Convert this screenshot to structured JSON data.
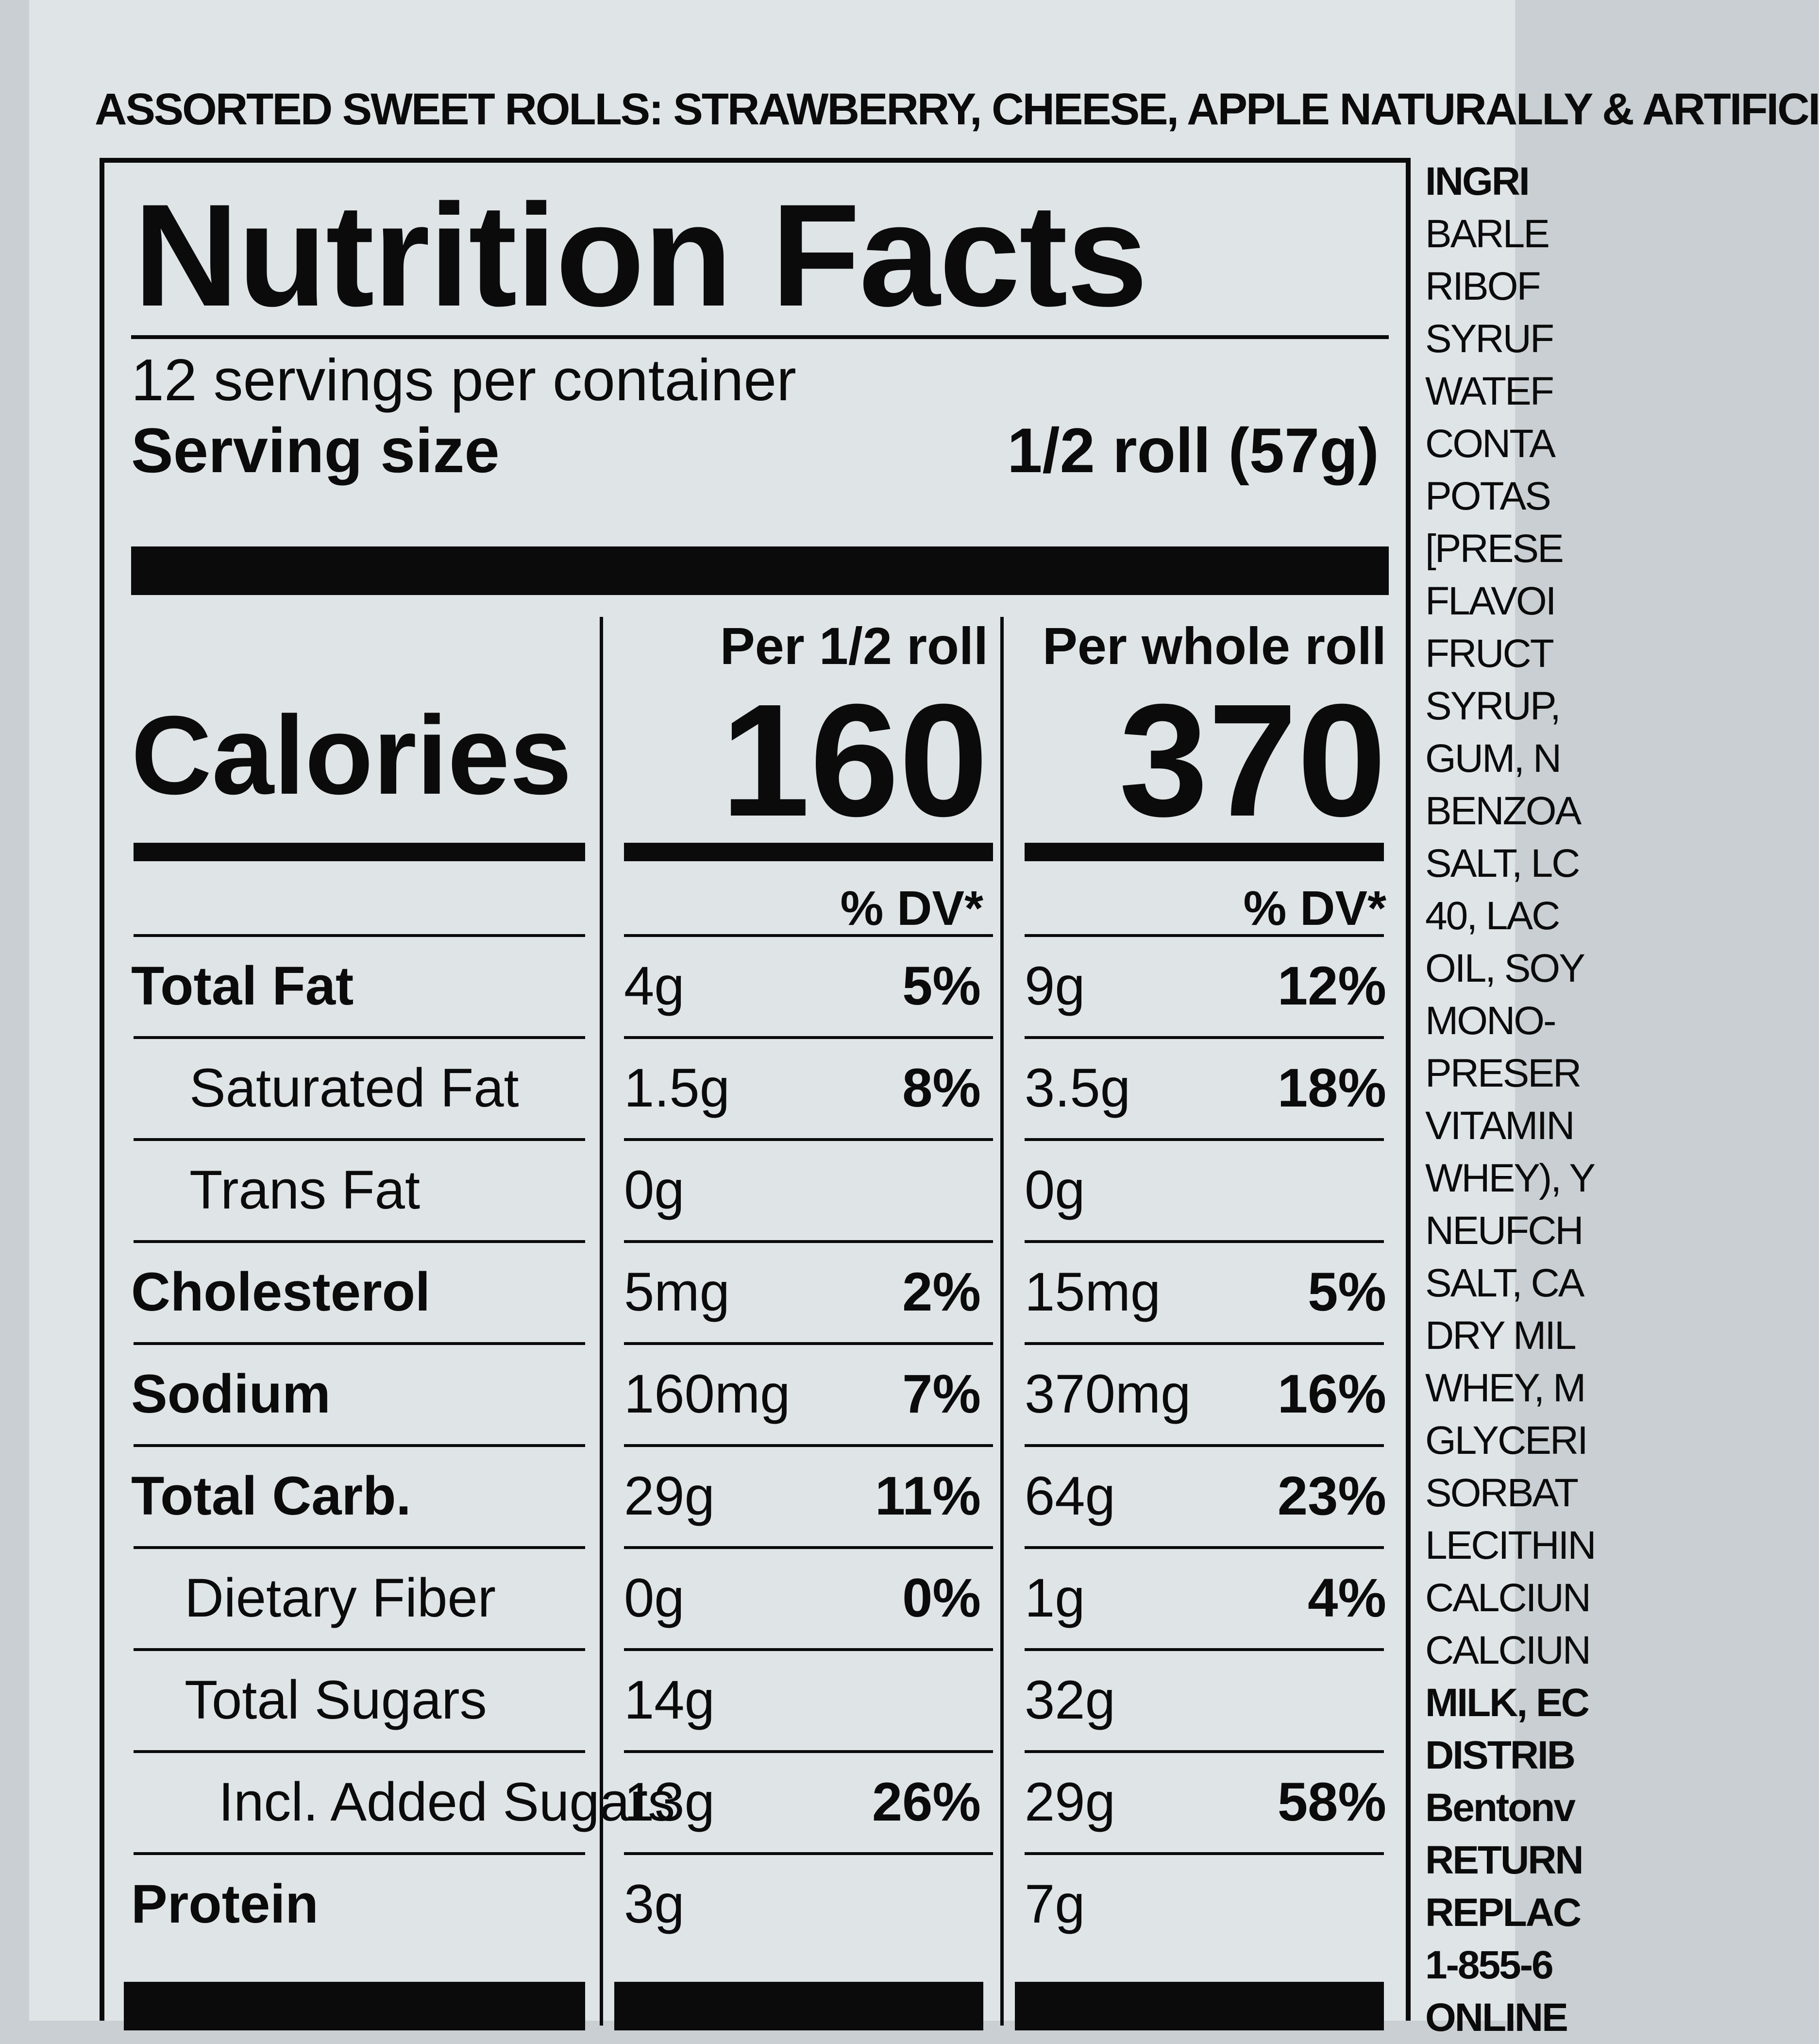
{
  "product_line": "ASSORTED SWEET ROLLS: STRAWBERRY, CHEESE, APPLE NATURALLY & ARTIFICI",
  "label": {
    "title": "Nutrition Facts",
    "servings_per_container": "12 servings per container",
    "serving_size_label": "Serving size",
    "serving_size_value": "1/2 roll (57g)",
    "columns": [
      "Per 1/2 roll",
      "Per whole roll"
    ],
    "calories_label": "Calories",
    "calories": [
      "160",
      "370"
    ],
    "dv_header": "% DV*",
    "rows": [
      {
        "name": "Total Fat",
        "bold": true,
        "half": {
          "amount": "4g",
          "dv": "5%"
        },
        "whole": {
          "amount": "9g",
          "dv": "12%"
        }
      },
      {
        "name": "Saturated Fat",
        "bold": false,
        "half": {
          "amount": "1.5g",
          "dv": "8%"
        },
        "whole": {
          "amount": "3.5g",
          "dv": "18%"
        }
      },
      {
        "name": "Trans Fat",
        "bold": false,
        "half": {
          "amount": "0g",
          "dv": ""
        },
        "whole": {
          "amount": "0g",
          "dv": ""
        }
      },
      {
        "name": "Cholesterol",
        "bold": true,
        "half": {
          "amount": "5mg",
          "dv": "2%"
        },
        "whole": {
          "amount": "15mg",
          "dv": "5%"
        }
      },
      {
        "name": "Sodium",
        "bold": true,
        "half": {
          "amount": "160mg",
          "dv": "7%"
        },
        "whole": {
          "amount": "370mg",
          "dv": "16%"
        }
      },
      {
        "name": "Total Carb.",
        "bold": true,
        "half": {
          "amount": "29g",
          "dv": "11%"
        },
        "whole": {
          "amount": "64g",
          "dv": "23%"
        }
      },
      {
        "name": "Dietary Fiber",
        "bold": false,
        "half": {
          "amount": "0g",
          "dv": "0%"
        },
        "whole": {
          "amount": "1g",
          "dv": "4%"
        }
      },
      {
        "name": "Total Sugars",
        "bold": false,
        "half": {
          "amount": "14g",
          "dv": ""
        },
        "whole": {
          "amount": "32g",
          "dv": ""
        }
      },
      {
        "name": "Incl. Added Sugars",
        "bold": false,
        "half": {
          "amount": "13g",
          "dv": "26%"
        },
        "whole": {
          "amount": "29g",
          "dv": "58%"
        }
      },
      {
        "name": "Protein",
        "bold": true,
        "half": {
          "amount": "3g",
          "dv": ""
        },
        "whole": {
          "amount": "7g",
          "dv": ""
        }
      }
    ]
  },
  "ingredients_fragments": [
    {
      "text": "INGRI",
      "bold": true
    },
    {
      "text": "BARLE",
      "bold": false
    },
    {
      "text": "RIBOF",
      "bold": false
    },
    {
      "text": "SYRUF",
      "bold": false
    },
    {
      "text": "WATEF",
      "bold": false
    },
    {
      "text": "CONTA",
      "bold": false
    },
    {
      "text": "POTAS",
      "bold": false
    },
    {
      "text": "[PRESE",
      "bold": false
    },
    {
      "text": "FLAVOI",
      "bold": false
    },
    {
      "text": "FRUCT",
      "bold": false
    },
    {
      "text": "SYRUP,",
      "bold": false
    },
    {
      "text": "GUM, N",
      "bold": false
    },
    {
      "text": "BENZOA",
      "bold": false
    },
    {
      "text": "SALT, LC",
      "bold": false
    },
    {
      "text": "40, LAC",
      "bold": false
    },
    {
      "text": "OIL, SOY",
      "bold": false
    },
    {
      "text": "MONO-",
      "bold": false
    },
    {
      "text": "PRESER",
      "bold": false
    },
    {
      "text": "VITAMIN",
      "bold": false
    },
    {
      "text": "WHEY), Y",
      "bold": false
    },
    {
      "text": "NEUFCH",
      "bold": false
    },
    {
      "text": "SALT, CA",
      "bold": false
    },
    {
      "text": "DRY MIL",
      "bold": false
    },
    {
      "text": "WHEY, M",
      "bold": false
    },
    {
      "text": "GLYCERI",
      "bold": false
    },
    {
      "text": "SORBAT",
      "bold": false
    },
    {
      "text": "LECITHIN",
      "bold": false
    },
    {
      "text": "CALCIUN",
      "bold": false
    },
    {
      "text": "CALCIUN",
      "bold": false
    },
    {
      "text": "MILK, EC",
      "bold": true
    },
    {
      "text": "DISTRIB",
      "bold": true
    },
    {
      "text": "Bentonv",
      "bold": true
    },
    {
      "text": "RETURN",
      "bold": true
    },
    {
      "text": "REPLAC",
      "bold": true
    },
    {
      "text": "1-855-6",
      "bold": true
    },
    {
      "text": "ONLINE",
      "bold": true
    }
  ]
}
